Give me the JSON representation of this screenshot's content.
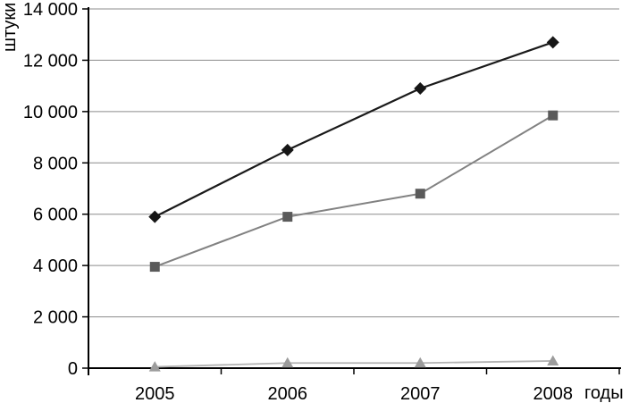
{
  "page": {
    "background": "#ffffff"
  },
  "chart_data": {
    "type": "line",
    "title": "",
    "ylabel": "штуки",
    "xlabel": "годы",
    "categories": [
      "2005",
      "2006",
      "2007",
      "2008"
    ],
    "series": [
      {
        "name": "diamond-series",
        "marker": "diamond",
        "marker_color": "#161616",
        "line_color": "#1a1a1a",
        "line_width": 2.2,
        "values": [
          5900,
          8500,
          10900,
          12700
        ]
      },
      {
        "name": "square-series",
        "marker": "square",
        "marker_color": "#5a5a5a",
        "line_color": "#828282",
        "line_width": 2.0,
        "values": [
          3950,
          5900,
          6800,
          9850
        ]
      },
      {
        "name": "triangle-series",
        "marker": "triangle",
        "marker_color": "#9c9c9c",
        "line_color": "#b4b4b4",
        "line_width": 1.8,
        "values": [
          50,
          200,
          200,
          280
        ]
      }
    ],
    "ylim": [
      0,
      14000
    ],
    "ytick_step": 2000,
    "ytick_labels": [
      "0",
      "2 000",
      "4 000",
      "6 000",
      "8 000",
      "10 000",
      "12 000",
      "14 000"
    ],
    "grid": true,
    "legend": "none",
    "gridline_color": "#8c8c8c",
    "axis_color": "#000000"
  }
}
